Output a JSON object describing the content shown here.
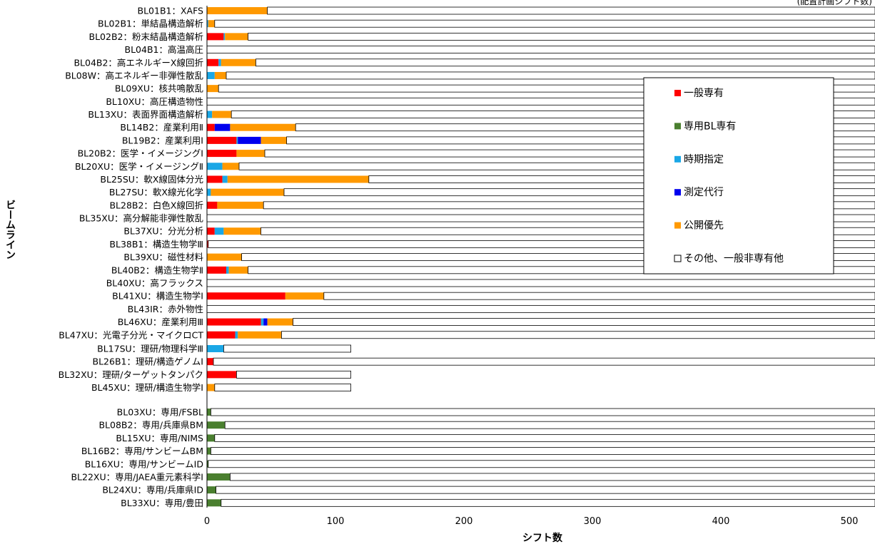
{
  "header_text": "(配置計画シフト数)",
  "colors": {
    "general": "#ff0000",
    "dedicated_bl": "#4a7f2f",
    "period": "#1aa7e6",
    "measure": "#0000ee",
    "public": "#ff9900",
    "other": "#ffffff"
  },
  "chart_data": {
    "type": "bar",
    "orientation": "horizontal",
    "stacked": true,
    "xlabel": "シフト数",
    "ylabel": "ビームライン",
    "xlim": [
      0,
      520
    ],
    "xticks": [
      0,
      100,
      200,
      300,
      400,
      500
    ],
    "grid": false,
    "legend_position": "top-right",
    "groups": [
      {
        "categories": [
          "BL01B1：XAFS",
          "BL02B1：単結晶構造解析",
          "BL02B2：粉末結晶構造解析",
          "BL04B1：高温高圧",
          "BL04B2：高エネルギーX線回折",
          "BL08W：高エネルギー非弾性散乱",
          "BL09XU：核共鳴散乱",
          "BL10XU：高圧構造物性",
          "BL13XU：表面界面構造解析",
          "BL14B2：産業利用Ⅱ",
          "BL19B2：産業利用Ⅰ",
          "BL20B2：医学・イメージングⅠ",
          "BL20XU：医学・イメージングⅡ",
          "BL25SU：軟X線固体分光",
          "BL27SU：軟X線光化学",
          "BL28B2：白色X線回折",
          "BL35XU：高分解能非弾性散乱",
          "BL37XU：分光分析",
          "BL38B1：構造生物学Ⅲ",
          "BL39XU：磁性材料",
          "BL40B2：構造生物学Ⅱ",
          "BL40XU：高フラックス",
          "BL41XU：構造生物学Ⅰ",
          "BL43IR：赤外物性",
          "BL46XU：産業利用Ⅲ",
          "BL47XU：光電子分光・マイクロCT"
        ]
      },
      {
        "categories": [
          "BL17SU：理研/物理科学Ⅲ",
          "BL26B1：理研/構造ゲノムⅠ",
          "BL32XU：理研/ターゲットタンパク",
          "BL45XU：理研/構造生物学Ⅰ"
        ]
      },
      {
        "categories": [
          "BL03XU：専用/FSBL",
          "BL08B2：専用/兵庫県BM",
          "BL15XU：専用/NIMS",
          "BL16B2：専用/サンビームBM",
          "BL16XU：専用/サンビームID",
          "BL22XU：専用/JAEA重元素科学Ⅰ",
          "BL24XU：専用/兵庫県ID",
          "BL33XU：専用/豊田"
        ]
      }
    ],
    "series": [
      {
        "name": "一般専有",
        "key": "general",
        "values": [
          0,
          0,
          13,
          0,
          9,
          0,
          0,
          0,
          0,
          6,
          23,
          23,
          0,
          12,
          0,
          8,
          0,
          6,
          1,
          0,
          15,
          0,
          61,
          0,
          42,
          22,
          0,
          5,
          23,
          0,
          0,
          0,
          0,
          0,
          0,
          0,
          0,
          0
        ]
      },
      {
        "name": "専用BL専有",
        "key": "dedicated_bl",
        "values": [
          0,
          0,
          0,
          0,
          0,
          0,
          0,
          0,
          0,
          0,
          0,
          0,
          0,
          0,
          0,
          0,
          0,
          0,
          0,
          0,
          0,
          0,
          0,
          0,
          0,
          0,
          0,
          0,
          0,
          0,
          3,
          14,
          6,
          3,
          1,
          18,
          7,
          11
        ]
      },
      {
        "name": "時期指定",
        "key": "period",
        "values": [
          0,
          1,
          1,
          0,
          2,
          6,
          0,
          0,
          4,
          0,
          1,
          0,
          12,
          4,
          3,
          0,
          0,
          7,
          0,
          0,
          2,
          0,
          0,
          0,
          2,
          2,
          13,
          0,
          0,
          0,
          0,
          0,
          0,
          0,
          0,
          0,
          0,
          0
        ]
      },
      {
        "name": "測定代行",
        "key": "measure",
        "values": [
          0,
          0,
          0,
          0,
          0,
          0,
          0,
          0,
          0,
          12,
          18,
          0,
          0,
          0,
          0,
          0,
          0,
          0,
          0,
          0,
          0,
          0,
          0,
          0,
          3,
          0,
          0,
          0,
          0,
          0,
          0,
          0,
          0,
          0,
          0,
          0,
          0,
          0
        ]
      },
      {
        "name": "公開優先",
        "key": "public",
        "values": [
          47,
          5,
          18,
          0,
          27,
          9,
          9,
          0,
          15,
          51,
          20,
          22,
          13,
          110,
          57,
          36,
          0,
          29,
          0,
          27,
          15,
          0,
          30,
          0,
          20,
          34,
          0,
          0,
          0,
          6,
          0,
          0,
          0,
          0,
          0,
          0,
          0,
          0
        ]
      },
      {
        "name": "その他、一般非専有他",
        "key": "other",
        "values": [
          473,
          514,
          488,
          520,
          482,
          505,
          511,
          520,
          501,
          451,
          458,
          475,
          495,
          394,
          460,
          476,
          520,
          478,
          519,
          493,
          488,
          520,
          429,
          520,
          453,
          462,
          99,
          515,
          89,
          106,
          517,
          506,
          514,
          517,
          519,
          502,
          513,
          509
        ]
      }
    ]
  }
}
